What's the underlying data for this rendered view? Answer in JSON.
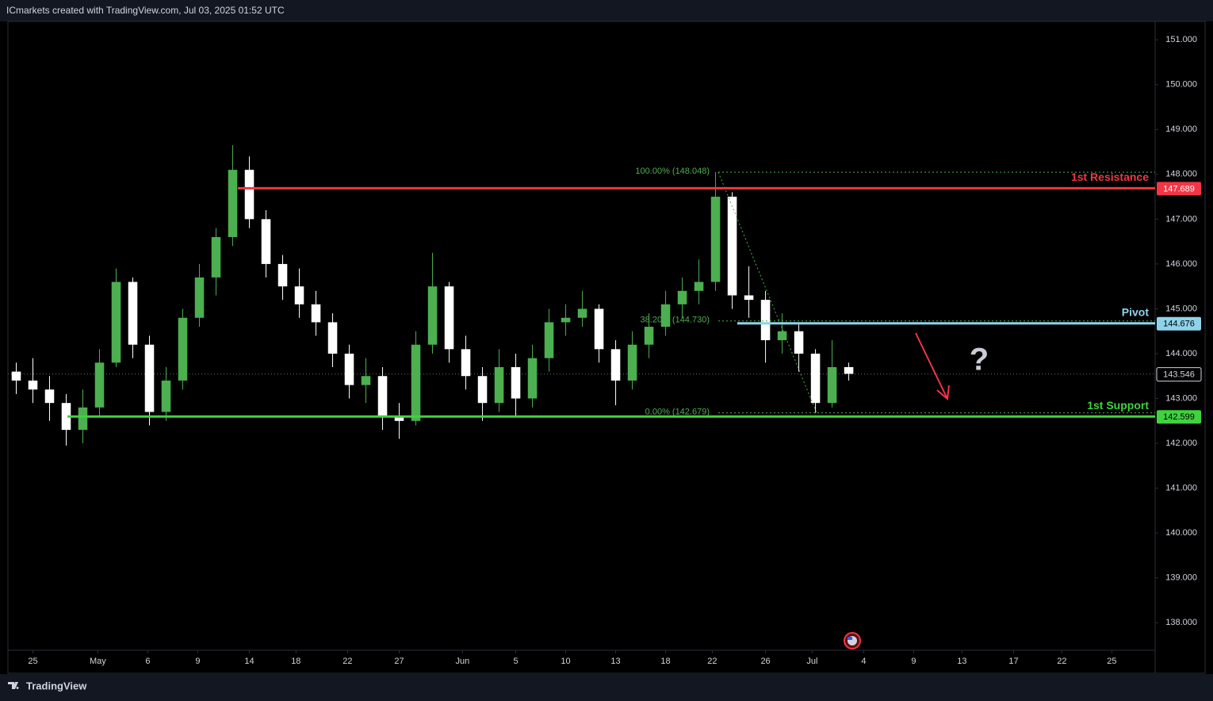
{
  "chart_data": {
    "type": "candlestick",
    "title": "ICmarkets created with TradingView.com, Jul 03, 2025 01:52 UTC",
    "brand": "TradingView",
    "x": [
      -1,
      0,
      1,
      2,
      3,
      4,
      5,
      6,
      7,
      8,
      9,
      10,
      11,
      12,
      13,
      14,
      15,
      16,
      17,
      18,
      19,
      20,
      21,
      22,
      23,
      24,
      25,
      26,
      27,
      28,
      29,
      30,
      31,
      32,
      33,
      34,
      35,
      36,
      37,
      38,
      39,
      40,
      41,
      42,
      43,
      44,
      45,
      46,
      47,
      48,
      49
    ],
    "open": [
      143.6,
      143.4,
      143.2,
      142.9,
      142.3,
      142.8,
      143.8,
      145.6,
      144.2,
      142.7,
      143.4,
      144.8,
      145.7,
      146.6,
      148.1,
      147.0,
      146.0,
      145.5,
      145.1,
      144.7,
      144.0,
      143.3,
      143.5,
      142.6,
      142.5,
      144.2,
      145.5,
      144.1,
      143.5,
      142.9,
      143.7,
      143.0,
      143.9,
      144.7,
      144.8,
      145.0,
      144.1,
      143.4,
      144.2,
      144.6,
      145.1,
      145.4,
      145.6,
      147.5,
      145.3,
      145.2,
      144.3,
      144.5,
      144.0,
      142.9,
      143.7
    ],
    "high": [
      143.8,
      143.9,
      143.5,
      143.1,
      143.2,
      144.1,
      145.9,
      145.7,
      144.4,
      143.7,
      145.0,
      146.0,
      146.8,
      148.65,
      148.4,
      147.2,
      146.2,
      145.9,
      145.4,
      144.9,
      144.2,
      143.9,
      143.7,
      142.9,
      144.5,
      146.25,
      145.6,
      144.4,
      143.7,
      144.1,
      144.0,
      144.2,
      145.0,
      145.1,
      145.4,
      145.1,
      144.3,
      144.5,
      144.9,
      145.4,
      145.7,
      146.1,
      148.05,
      147.6,
      145.95,
      145.4,
      144.9,
      144.7,
      144.1,
      144.3,
      143.8
    ],
    "low": [
      143.1,
      142.9,
      142.5,
      141.95,
      142.0,
      142.6,
      143.7,
      143.9,
      142.4,
      142.5,
      143.2,
      144.6,
      145.3,
      146.4,
      146.8,
      145.7,
      145.2,
      144.8,
      144.4,
      143.7,
      143.0,
      142.9,
      142.3,
      142.1,
      142.4,
      144.0,
      143.8,
      143.2,
      142.5,
      142.7,
      142.6,
      142.8,
      143.6,
      144.4,
      144.6,
      143.8,
      142.85,
      143.2,
      143.9,
      144.4,
      144.8,
      145.1,
      145.4,
      145.0,
      144.8,
      143.8,
      144.0,
      143.6,
      142.68,
      142.8,
      143.4
    ],
    "close": [
      143.4,
      143.2,
      142.9,
      142.3,
      142.8,
      143.8,
      145.6,
      144.2,
      142.7,
      143.4,
      144.8,
      145.7,
      146.6,
      148.1,
      147.0,
      146.0,
      145.5,
      145.1,
      144.7,
      144.0,
      143.3,
      143.5,
      142.6,
      142.5,
      144.2,
      145.5,
      144.1,
      143.5,
      142.9,
      143.7,
      143.0,
      143.9,
      144.7,
      144.8,
      145.0,
      144.1,
      143.4,
      144.2,
      144.6,
      145.1,
      145.4,
      145.6,
      147.5,
      145.3,
      145.2,
      144.3,
      144.5,
      144.0,
      142.9,
      143.7,
      143.55
    ],
    "up_color": "#4caf50",
    "down_color": "#ffffff",
    "xlim": [
      -1.5,
      67.4
    ],
    "xticks": [
      {
        "value": 0,
        "label": "25"
      },
      {
        "value": 3.9,
        "label": "May"
      },
      {
        "value": 6.9,
        "label": "6"
      },
      {
        "value": 9.9,
        "label": "9"
      },
      {
        "value": 13,
        "label": "14"
      },
      {
        "value": 15.8,
        "label": "18"
      },
      {
        "value": 18.9,
        "label": "22"
      },
      {
        "value": 22,
        "label": "27"
      },
      {
        "value": 25.8,
        "label": "Jun"
      },
      {
        "value": 29,
        "label": "5"
      },
      {
        "value": 32,
        "label": "10"
      },
      {
        "value": 35,
        "label": "13"
      },
      {
        "value": 38,
        "label": "18"
      },
      {
        "value": 40.8,
        "label": "22"
      },
      {
        "value": 44,
        "label": "26"
      },
      {
        "value": 46.8,
        "label": "Jul"
      },
      {
        "value": 49.9,
        "label": "4"
      },
      {
        "value": 52.9,
        "label": "9"
      },
      {
        "value": 55.8,
        "label": "13"
      },
      {
        "value": 58.9,
        "label": "17"
      },
      {
        "value": 61.8,
        "label": "22"
      },
      {
        "value": 64.8,
        "label": "25"
      }
    ],
    "ylim": [
      136.89,
      151.41
    ],
    "yticks": [
      {
        "value": 138,
        "label": "138.000"
      },
      {
        "value": 139,
        "label": "139.000"
      },
      {
        "value": 140,
        "label": "140.000"
      },
      {
        "value": 141,
        "label": "141.000"
      },
      {
        "value": 142,
        "label": "142.000"
      },
      {
        "value": 143,
        "label": "143.000"
      },
      {
        "value": 144,
        "label": "144.000"
      },
      {
        "value": 145,
        "label": "145.000"
      },
      {
        "value": 146,
        "label": "146.000"
      },
      {
        "value": 147,
        "label": "147.000"
      },
      {
        "value": 148,
        "label": "148.000"
      },
      {
        "value": 149,
        "label": "149.000"
      },
      {
        "value": 150,
        "label": "150.000"
      },
      {
        "value": 151,
        "label": "151.000"
      }
    ],
    "levels": [
      {
        "name": "1st Resistance",
        "value": 147.689,
        "color": "#f23645"
      },
      {
        "name": "Pivot",
        "value": 144.676,
        "color": "#8fd3ea"
      },
      {
        "name": "1st Support",
        "value": 142.599,
        "color": "#3fd33f"
      }
    ],
    "fib": [
      {
        "label": "100.00% (148.048)",
        "value": 148.048
      },
      {
        "label": "38.20% (144.730)",
        "value": 144.73
      },
      {
        "label": "0.00% (142.679)",
        "value": 142.679
      }
    ],
    "fib_color": "#4caf50",
    "last_price": 143.546
  }
}
